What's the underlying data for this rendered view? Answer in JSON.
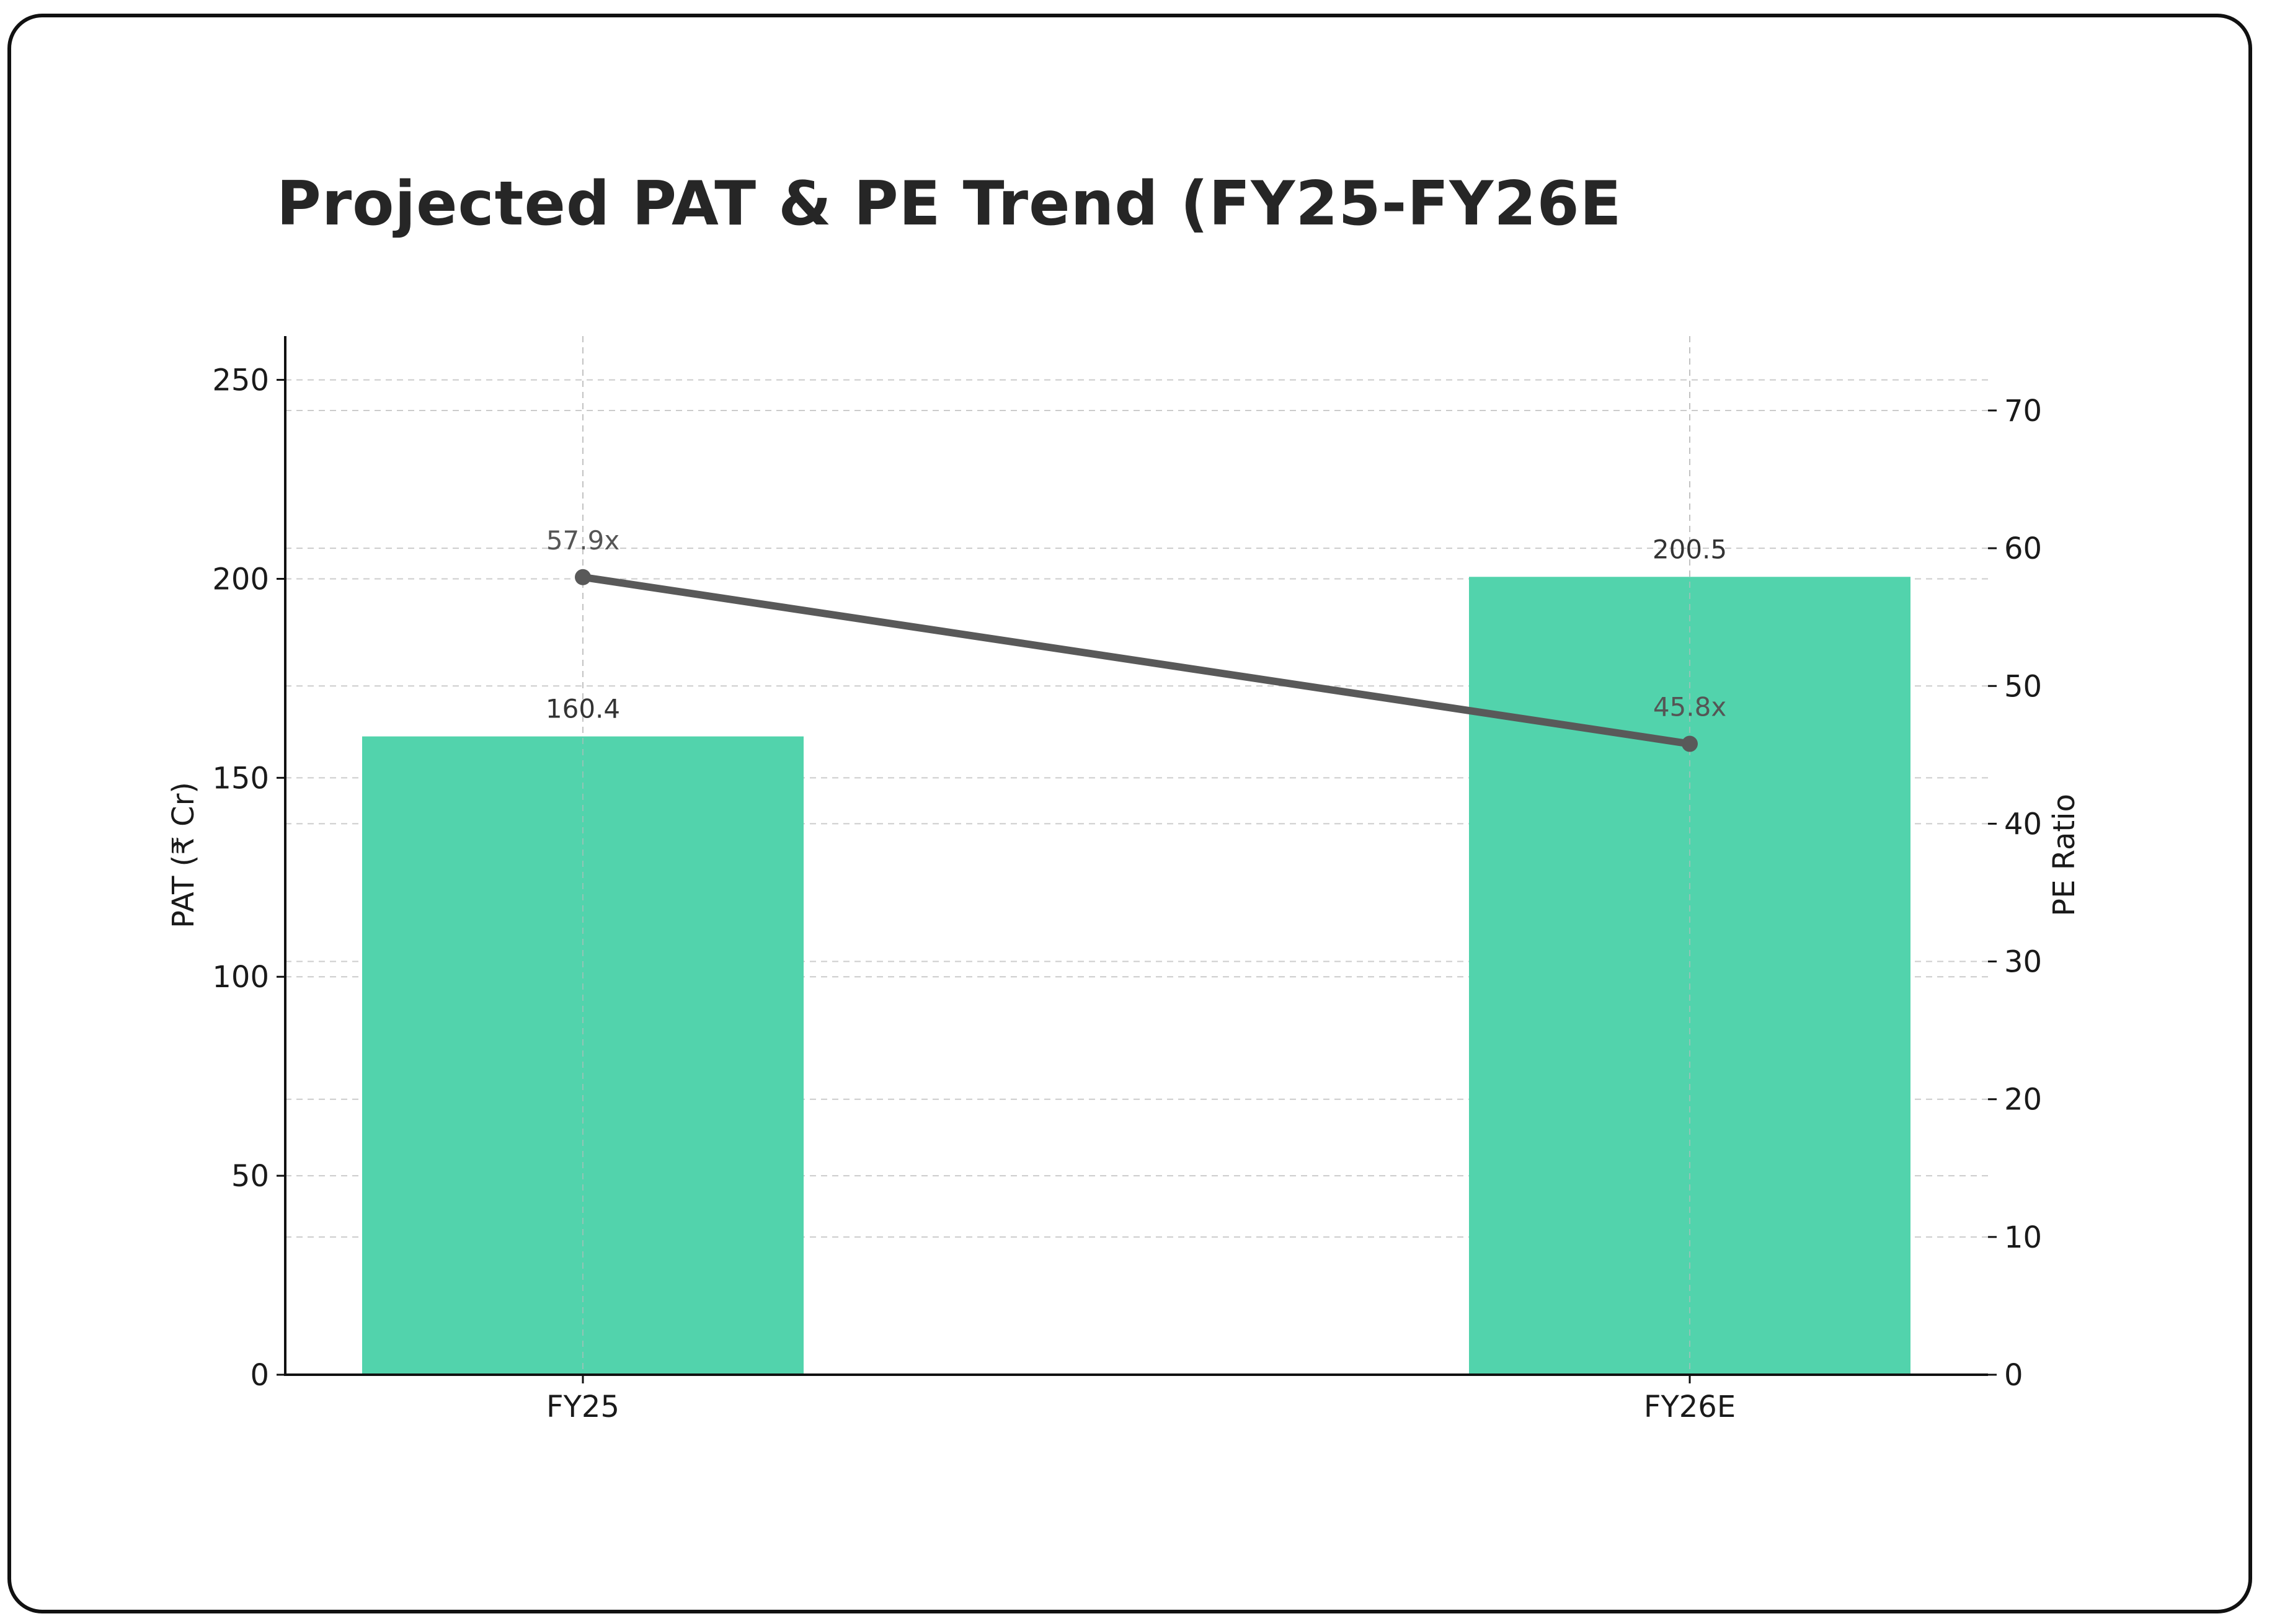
{
  "title": "Projected PAT & PE Trend (FY25-FY26E",
  "colors": {
    "bar": "#52D3AC",
    "line": "#595959",
    "axis": "#111111",
    "grid": "#cccccc",
    "border": "#111111"
  },
  "chart_data": {
    "type": "bar+line",
    "title": "Projected PAT & PE Trend (FY25-FY26E",
    "categories": [
      "FY25",
      "FY26E"
    ],
    "series": [
      {
        "name": "PAT (₹ Cr)",
        "type": "bar",
        "axis": "left",
        "values": [
          160.4,
          200.5
        ],
        "labels": [
          "160.4",
          "200.5"
        ],
        "color": "#52D3AC"
      },
      {
        "name": "PE Ratio",
        "type": "line",
        "axis": "right",
        "values": [
          57.9,
          45.8
        ],
        "labels": [
          "57.9x",
          "45.8x"
        ],
        "color": "#595959"
      }
    ],
    "xlabel": "",
    "ylabel": "PAT (₹ Cr)",
    "y2label": "PE Ratio",
    "ylim": [
      0,
      261
    ],
    "y2lim": [
      0,
      75.4
    ],
    "yticks": [
      0,
      50,
      100,
      150,
      200,
      250
    ],
    "y2ticks": [
      0,
      10,
      20,
      30,
      40,
      50,
      60,
      70
    ],
    "grid": true,
    "grid_style": "dashed",
    "legend": null
  },
  "axes": {
    "left_label": "PAT (₹ Cr)",
    "right_label": "PE Ratio",
    "left_ticks": [
      "0",
      "50",
      "100",
      "150",
      "200",
      "250"
    ],
    "right_ticks": [
      "0",
      "10",
      "20",
      "30",
      "40",
      "50",
      "60",
      "70"
    ],
    "x_ticks": [
      "FY25",
      "FY26E"
    ]
  },
  "bars": [
    {
      "category": "FY25",
      "value": 160.4,
      "label": "160.4"
    },
    {
      "category": "FY26E",
      "value": 200.5,
      "label": "200.5"
    }
  ],
  "line_points": [
    {
      "category": "FY25",
      "value": 57.9,
      "label": "57.9x"
    },
    {
      "category": "FY26E",
      "value": 45.8,
      "label": "45.8x"
    }
  ]
}
